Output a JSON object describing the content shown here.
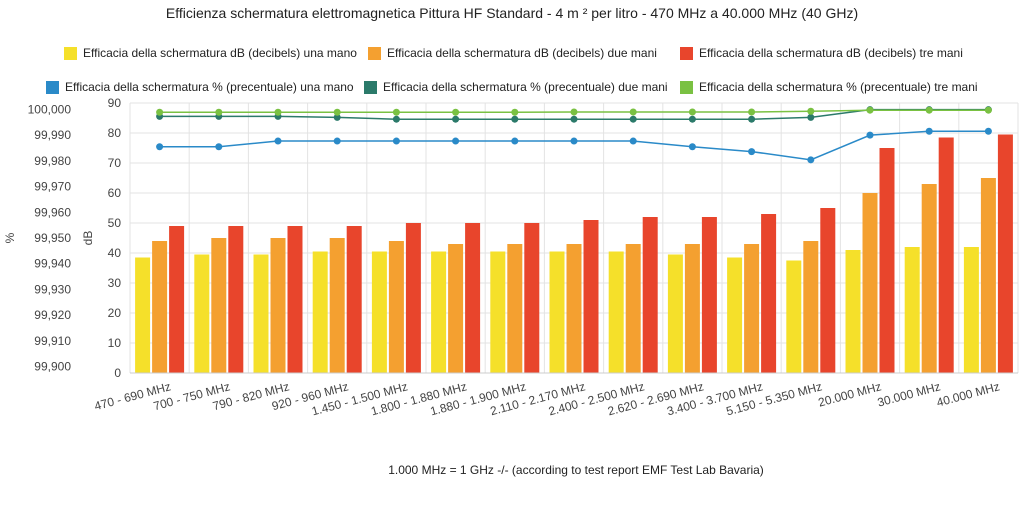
{
  "chart_data": {
    "type": "bar",
    "title": "Efficienza schermatura elettromagnetica Pittura HF Standard - 4 m ² per litro - 470 MHz a 40.000 MHz (40 GHz)",
    "footer": "1.000 MHz = 1 GHz -/- (according to test report EMF Test Lab Bavaria)",
    "categories": [
      "470 - 690 MHz",
      "700 - 750 MHz",
      "790 - 820 MHz",
      "920 - 960 MHz",
      "1.450 - 1.500 MHz",
      "1.800 - 1.880 MHz",
      "1.880 - 1.900 MHz",
      "2.110 - 2.170 MHz",
      "2.400 - 2.500 MHz",
      "2.620 - 2.690 MHz",
      "3.400 - 3.700 MHz",
      "5.150 - 5.350 MHz",
      "20.000 MHz",
      "30.000 MHz",
      "40.000 MHz"
    ],
    "y_left": {
      "label": "%",
      "ticks": [
        "99,900",
        "99,910",
        "99,920",
        "99,930",
        "99,940",
        "99,950",
        "99,960",
        "99,970",
        "99,980",
        "99,990",
        "100,000"
      ],
      "range": [
        99.8975,
        100.0025
      ]
    },
    "y_right": {
      "label": "dB",
      "ticks": [
        "0",
        "10",
        "20",
        "30",
        "40",
        "50",
        "60",
        "70",
        "80",
        "90"
      ],
      "range": [
        0,
        90
      ]
    },
    "bar_series": [
      {
        "name": "Efficacia della schermatura dB (decibels) una mano",
        "color": "#f5e02a",
        "values": [
          38.5,
          39.5,
          39.5,
          40.5,
          40.5,
          40.5,
          40.5,
          40.5,
          40.5,
          39.5,
          38.5,
          37.5,
          41,
          42,
          42
        ]
      },
      {
        "name": "Efficacia della schermatura dB (decibels) due mani",
        "color": "#f4a030",
        "values": [
          44,
          45,
          45,
          45,
          44,
          43,
          43,
          43,
          43,
          43,
          43,
          44,
          60,
          63,
          65
        ]
      },
      {
        "name": "Efficacia della schermatura dB (decibels) tre mani",
        "color": "#e8452c",
        "values": [
          49,
          49,
          49,
          49,
          50,
          50,
          50,
          51,
          52,
          52,
          53,
          55,
          75,
          78.5,
          79.5
        ]
      }
    ],
    "line_series": [
      {
        "name": "Efficacia della schermatura % (precentuale) una mano",
        "color": "#2a8ac8",
        "values": [
          99.9855,
          99.9855,
          99.9877,
          99.9877,
          99.9877,
          99.9877,
          99.9877,
          99.9877,
          99.9877,
          99.9855,
          99.9836,
          99.9804,
          99.99,
          99.9915,
          99.9915
        ]
      },
      {
        "name": "Efficacia della schermatura % (precentuale) due mani",
        "color": "#2b7a6a",
        "values": [
          99.9973,
          99.9973,
          99.9973,
          99.9969,
          99.9962,
          99.9962,
          99.9962,
          99.9962,
          99.9962,
          99.9962,
          99.9962,
          99.9969,
          99.9999,
          99.9999,
          99.9999
        ]
      },
      {
        "name": "Efficacia della schermatura % (precentuale) tre mani",
        "color": "#7ac142",
        "values": [
          99.9989,
          99.9989,
          99.9989,
          99.9989,
          99.9989,
          99.9989,
          99.9989,
          99.999,
          99.999,
          99.999,
          99.999,
          99.9993,
          99.9997,
          99.9997,
          99.9997
        ]
      }
    ],
    "legend_placement": "top",
    "grid": true
  }
}
